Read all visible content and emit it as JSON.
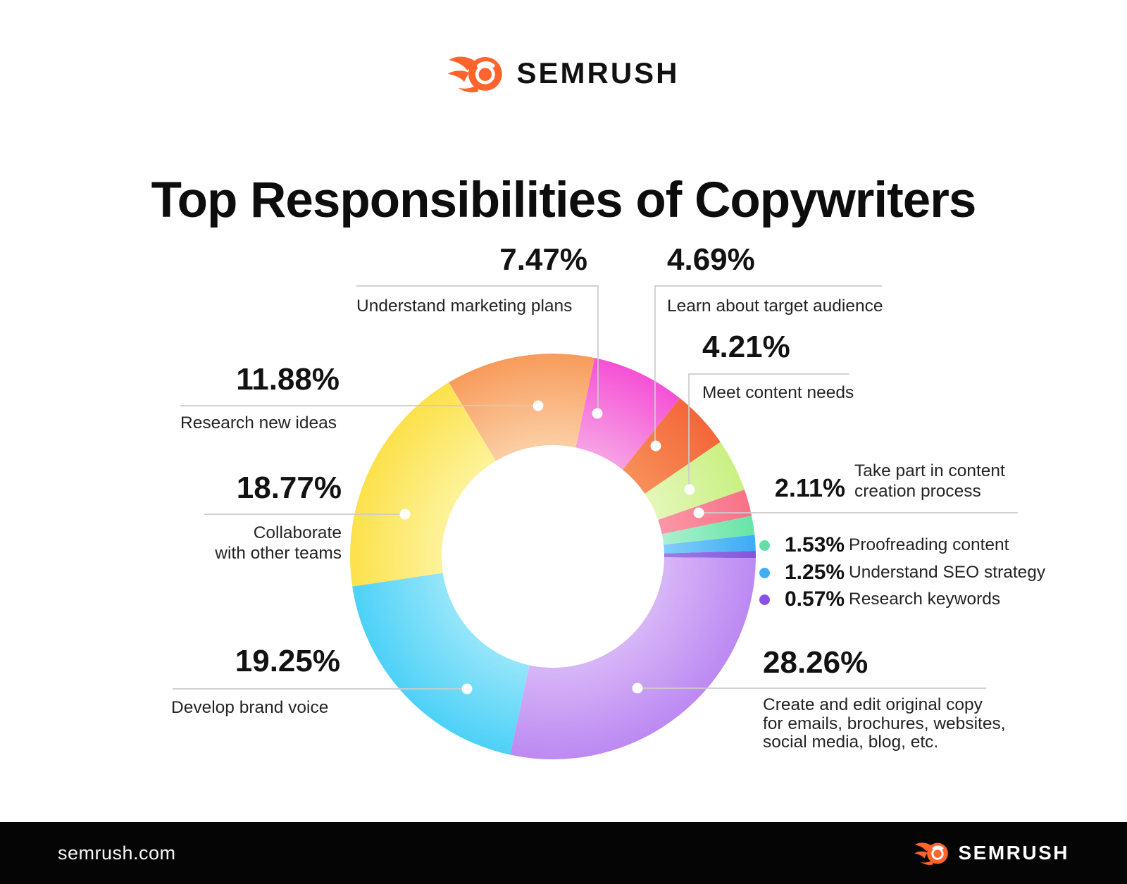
{
  "brand": {
    "name": "SEMRUSH",
    "site": "semrush.com",
    "accent": "#FF642D"
  },
  "title": "Top Responsibilities of Copywriters",
  "chart_data": {
    "type": "pie",
    "subtype": "donut",
    "title": "Top Responsibilities of Copywriters",
    "units": "%",
    "legend_position": "right",
    "slices": [
      {
        "label": "Research new ideas",
        "value": 11.88,
        "color": "#F89B5B",
        "color_inner": "#FBCDA2"
      },
      {
        "label": "Understand marketing plans",
        "value": 7.47,
        "color": "#F551D6",
        "color_inner": "#F79FE4"
      },
      {
        "label": "Learn about target audience",
        "value": 4.69,
        "color": "#F4663A",
        "color_inner": "#F78E58"
      },
      {
        "label": "Meet content needs",
        "value": 4.21,
        "color": "#C9F083",
        "color_inner": "#E3F7B7"
      },
      {
        "label": "Take part in content creation process",
        "value": 2.11,
        "color": "#F97187",
        "color_inner": "#FA96A5"
      },
      {
        "label": "Proofreading content",
        "value": 1.53,
        "color": "#67E4A6",
        "color_inner": "#A8F0CF"
      },
      {
        "label": "Understand SEO strategy",
        "value": 1.25,
        "color": "#3BACF5",
        "color_inner": "#82CCF9"
      },
      {
        "label": "Research keywords",
        "value": 0.57,
        "color": "#8355DB",
        "color_inner": "#A07BE6"
      },
      {
        "label": "Create and edit original copy for emails, brochures, websites, social media, blog, etc.",
        "value": 28.26,
        "color": "#BC89F2",
        "color_inner": "#D6B5F7"
      },
      {
        "label": "Develop brand voice",
        "value": 19.25,
        "color": "#4DD1F7",
        "color_inner": "#93E5FA"
      },
      {
        "label": "Collaborate with other teams",
        "value": 18.77,
        "color": "#FCE14A",
        "color_inner": "#FDF298"
      }
    ]
  },
  "callouts": {
    "research_ideas": {
      "pct": "11.88%",
      "label": "Research new ideas"
    },
    "marketing": {
      "pct": "7.47%",
      "label": "Understand marketing plans"
    },
    "audience": {
      "pct": "4.69%",
      "label": "Learn about target audience"
    },
    "content_needs": {
      "pct": "4.21%",
      "label": "Meet content needs"
    },
    "creation": {
      "pct": "2.11%",
      "label_line1": "Take part in content",
      "label_line2": "creation process"
    },
    "collaborate": {
      "pct": "18.77%",
      "label_line1": "Collaborate",
      "label_line2": "with other teams"
    },
    "brand_voice": {
      "pct": "19.25%",
      "label": "Develop brand voice"
    },
    "create_copy": {
      "pct": "28.26%",
      "label_line1": "Create and edit original copy",
      "label_line2": "for emails, brochures, websites,",
      "label_line3": "social media, blog, etc."
    },
    "legend": [
      {
        "pct": "1.53%",
        "label": "Proofreading content",
        "color": "#63DFA3"
      },
      {
        "pct": "1.25%",
        "label": "Understand SEO strategy",
        "color": "#3FAEF5"
      },
      {
        "pct": "0.57%",
        "label": "Research keywords",
        "color": "#8A52E3"
      }
    ]
  }
}
